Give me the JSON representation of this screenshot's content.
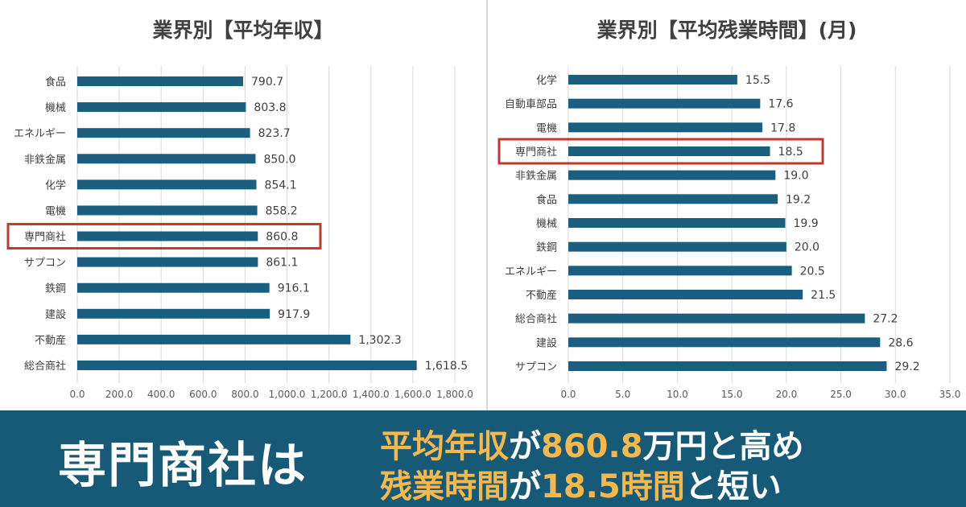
{
  "chart_data": [
    {
      "type": "bar",
      "orientation": "horizontal",
      "title": "業界別【平均年収】",
      "categories": [
        "食品",
        "機械",
        "エネルギー",
        "非鉄金属",
        "化学",
        "電機",
        "専門商社",
        "サプコン",
        "鉄鋼",
        "建設",
        "不動産",
        "総合商社"
      ],
      "values": [
        790.7,
        803.8,
        823.7,
        850.0,
        854.1,
        858.2,
        860.8,
        861.1,
        916.1,
        917.9,
        1302.3,
        1618.5
      ],
      "value_labels": [
        "790.7",
        "803.8",
        "823.7",
        "850.0",
        "854.1",
        "858.2",
        "860.8",
        "861.1",
        "916.1",
        "917.9",
        "1,302.3",
        "1,618.5"
      ],
      "xlim": [
        0,
        1800
      ],
      "ticks": [
        "0.0",
        "200.0",
        "400.0",
        "600.0",
        "800.0",
        "1,000.0",
        "1,200.0",
        "1,400.0",
        "1,600.0",
        "1,800.0"
      ],
      "grid": true,
      "highlight_category": "専門商社",
      "bar_color": "#1a5f80",
      "highlight_color": "#c0392b"
    },
    {
      "type": "bar",
      "orientation": "horizontal",
      "title": "業界別【平均残業時間】(月)",
      "categories": [
        "化学",
        "自動車部品",
        "電機",
        "専門商社",
        "非鉄金属",
        "食品",
        "機械",
        "鉄鋼",
        "エネルギー",
        "不動産",
        "総合商社",
        "建設",
        "サプコン"
      ],
      "values": [
        15.5,
        17.6,
        17.8,
        18.5,
        19.0,
        19.2,
        19.9,
        20.0,
        20.5,
        21.5,
        27.2,
        28.6,
        29.2
      ],
      "value_labels": [
        "15.5",
        "17.6",
        "17.8",
        "18.5",
        "19.0",
        "19.2",
        "19.9",
        "20.0",
        "20.5",
        "21.5",
        "27.2",
        "28.6",
        "29.2"
      ],
      "xlim": [
        0,
        35
      ],
      "ticks": [
        "0.0",
        "5.0",
        "10.0",
        "15.0",
        "20.0",
        "25.0",
        "30.0",
        "35.0"
      ],
      "grid": true,
      "highlight_category": "専門商社",
      "bar_color": "#1a5f80",
      "highlight_color": "#c0392b"
    }
  ],
  "banner": {
    "main": "専門商社は",
    "line1": {
      "part1": "平均年収",
      "part2": "が",
      "part3": "860.8",
      "part4": "万円と高め"
    },
    "line2": {
      "part1": "残業時間",
      "part2": "が",
      "part3": "18.5",
      "part4": "時間",
      "part5": "と短い"
    },
    "background": "#165a78",
    "accent": "#f7b84b"
  }
}
